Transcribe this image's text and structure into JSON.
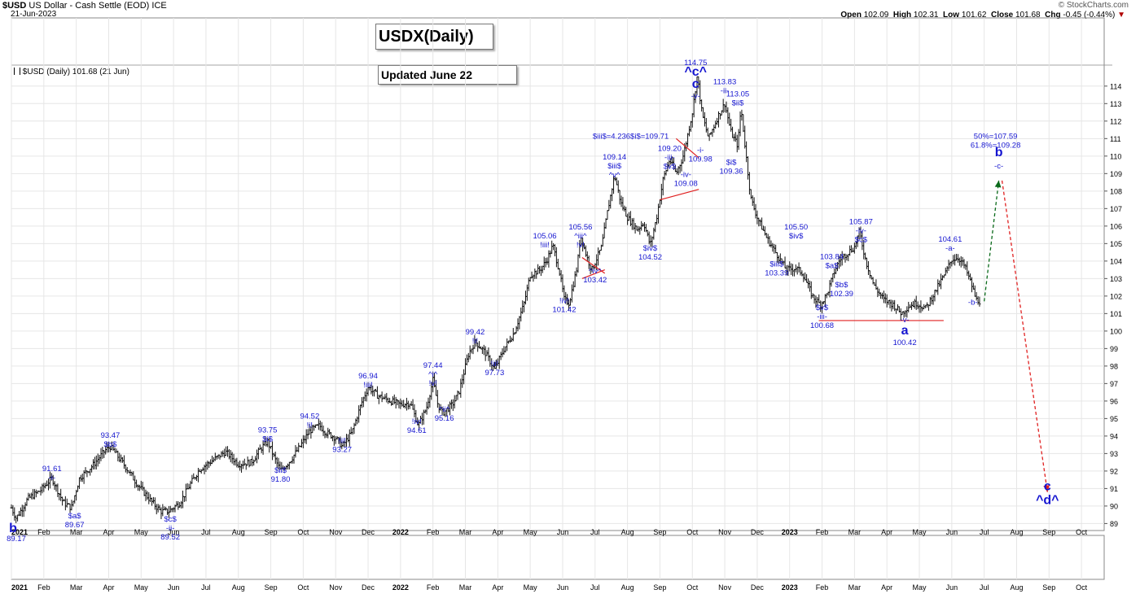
{
  "header": {
    "symbol": "$USD",
    "name": "US Dollar - Cash Settle (EOD)",
    "exchange": "ICE",
    "date": "21-Jun-2023",
    "open_label": "Open",
    "open": "102.09",
    "high_label": "High",
    "high": "102.31",
    "low_label": "Low",
    "low": "101.62",
    "close_label": "Close",
    "close": "101.68",
    "chg_label": "Chg",
    "chg": "-0.45 (-0.44%)",
    "chg_arrow": "▼",
    "brand": "© StockCharts.com",
    "legend": "$USD (Daily) 101.68 (21 Jun)"
  },
  "title_box": "USDX(Daily)",
  "updated_box": "Updated June 22",
  "colors": {
    "wave": "#1515d0",
    "price": "#111111",
    "trend": "#e02020",
    "projection_up": "#0a6a1a",
    "projection_down": "#e02020",
    "grid": "#e6e6e6"
  },
  "chart_data": {
    "type": "line",
    "title": "USDX(Daily)",
    "xlabel": "",
    "ylabel": "",
    "ylim": [
      88.6,
      115.2
    ],
    "y_ticks": [
      89,
      90,
      91,
      92,
      93,
      94,
      95,
      96,
      97,
      98,
      99,
      100,
      101,
      102,
      103,
      104,
      105,
      106,
      107,
      108,
      109,
      110,
      111,
      112,
      113,
      114
    ],
    "x_range_months": [
      0,
      33.7
    ],
    "x_ticks": [
      {
        "m": 0,
        "label": "2021",
        "bold": true
      },
      {
        "m": 1,
        "label": "Feb"
      },
      {
        "m": 2,
        "label": "Mar"
      },
      {
        "m": 3,
        "label": "Apr"
      },
      {
        "m": 4,
        "label": "May"
      },
      {
        "m": 5,
        "label": "Jun"
      },
      {
        "m": 6,
        "label": "Jul"
      },
      {
        "m": 7,
        "label": "Aug"
      },
      {
        "m": 8,
        "label": "Sep"
      },
      {
        "m": 9,
        "label": "Oct"
      },
      {
        "m": 10,
        "label": "Nov"
      },
      {
        "m": 11,
        "label": "Dec"
      },
      {
        "m": 12,
        "label": "2022",
        "bold": true
      },
      {
        "m": 13,
        "label": "Feb"
      },
      {
        "m": 14,
        "label": "Mar"
      },
      {
        "m": 15,
        "label": "Apr"
      },
      {
        "m": 16,
        "label": "May"
      },
      {
        "m": 17,
        "label": "Jun"
      },
      {
        "m": 18,
        "label": "Jul"
      },
      {
        "m": 19,
        "label": "Aug"
      },
      {
        "m": 20,
        "label": "Sep"
      },
      {
        "m": 21,
        "label": "Oct"
      },
      {
        "m": 22,
        "label": "Nov"
      },
      {
        "m": 23,
        "label": "Dec"
      },
      {
        "m": 24,
        "label": "2023",
        "bold": true
      },
      {
        "m": 25,
        "label": "Feb"
      },
      {
        "m": 26,
        "label": "Mar"
      },
      {
        "m": 27,
        "label": "Apr"
      },
      {
        "m": 28,
        "label": "May"
      },
      {
        "m": 29,
        "label": "Jun"
      },
      {
        "m": 30,
        "label": "Jul"
      },
      {
        "m": 31,
        "label": "Aug"
      },
      {
        "m": 32,
        "label": "Sep"
      },
      {
        "m": 33,
        "label": "Oct"
      }
    ],
    "series": [
      {
        "name": "$USD (Daily) close",
        "points": [
          [
            0,
            89.9
          ],
          [
            0.15,
            89.3
          ],
          [
            0.5,
            90.4
          ],
          [
            0.9,
            90.9
          ],
          [
            1.25,
            91.6
          ],
          [
            1.6,
            90.2
          ],
          [
            1.85,
            89.9
          ],
          [
            2.1,
            91.6
          ],
          [
            2.5,
            92.3
          ],
          [
            2.9,
            93.2
          ],
          [
            3.05,
            93.4
          ],
          [
            3.5,
            92.3
          ],
          [
            3.9,
            91.2
          ],
          [
            4.3,
            90.3
          ],
          [
            4.6,
            89.7
          ],
          [
            4.85,
            89.7
          ],
          [
            5.2,
            90.2
          ],
          [
            5.5,
            91.2
          ],
          [
            5.8,
            92.1
          ],
          [
            6.2,
            92.6
          ],
          [
            6.6,
            93.1
          ],
          [
            7.0,
            92.4
          ],
          [
            7.4,
            92.5
          ],
          [
            7.7,
            93.3
          ],
          [
            7.9,
            93.7
          ],
          [
            8.1,
            92.8
          ],
          [
            8.3,
            92.0
          ],
          [
            8.6,
            92.6
          ],
          [
            8.9,
            93.4
          ],
          [
            9.2,
            94.3
          ],
          [
            9.5,
            94.6
          ],
          [
            9.7,
            94.2
          ],
          [
            10.0,
            93.9
          ],
          [
            10.2,
            93.4
          ],
          [
            10.5,
            94.2
          ],
          [
            10.8,
            95.9
          ],
          [
            11.0,
            96.8
          ],
          [
            11.3,
            96.3
          ],
          [
            11.7,
            96.0
          ],
          [
            12.0,
            95.8
          ],
          [
            12.3,
            95.9
          ],
          [
            12.55,
            94.6
          ],
          [
            12.8,
            95.6
          ],
          [
            13.0,
            97.2
          ],
          [
            13.15,
            95.8
          ],
          [
            13.3,
            95.3
          ],
          [
            13.6,
            95.8
          ],
          [
            13.8,
            96.5
          ],
          [
            14.1,
            98.7
          ],
          [
            14.3,
            99.4
          ],
          [
            14.6,
            98.8
          ],
          [
            14.9,
            97.8
          ],
          [
            15.2,
            99.0
          ],
          [
            15.5,
            99.9
          ],
          [
            15.8,
            101.5
          ],
          [
            16.0,
            103.2
          ],
          [
            16.3,
            103.5
          ],
          [
            16.5,
            104.0
          ],
          [
            16.7,
            104.9
          ],
          [
            16.9,
            103.4
          ],
          [
            17.05,
            101.8
          ],
          [
            17.2,
            101.6
          ],
          [
            17.45,
            103.7
          ],
          [
            17.55,
            105.5
          ],
          [
            17.75,
            104.2
          ],
          [
            17.9,
            103.5
          ],
          [
            18.2,
            104.8
          ],
          [
            18.4,
            107.0
          ],
          [
            18.6,
            108.9
          ],
          [
            18.8,
            107.3
          ],
          [
            19.0,
            106.5
          ],
          [
            19.3,
            105.8
          ],
          [
            19.5,
            106.2
          ],
          [
            19.7,
            104.9
          ],
          [
            19.9,
            106.5
          ],
          [
            20.1,
            108.7
          ],
          [
            20.3,
            109.8
          ],
          [
            20.5,
            109.0
          ],
          [
            20.7,
            109.9
          ],
          [
            20.8,
            110.7
          ],
          [
            21.0,
            112.5
          ],
          [
            21.15,
            114.6
          ],
          [
            21.3,
            112.4
          ],
          [
            21.5,
            111.0
          ],
          [
            21.8,
            112.3
          ],
          [
            22.0,
            113.0
          ],
          [
            22.2,
            111.3
          ],
          [
            22.4,
            110.6
          ],
          [
            22.5,
            112.8
          ],
          [
            22.6,
            111.0
          ],
          [
            22.8,
            107.6
          ],
          [
            23.0,
            106.5
          ],
          [
            23.3,
            105.3
          ],
          [
            23.6,
            104.4
          ],
          [
            23.9,
            103.5
          ],
          [
            24.2,
            103.6
          ],
          [
            24.4,
            103.3
          ],
          [
            24.7,
            102.0
          ],
          [
            24.95,
            101.5
          ],
          [
            25.15,
            102.1
          ],
          [
            25.4,
            103.5
          ],
          [
            25.55,
            104.1
          ],
          [
            25.8,
            104.5
          ],
          [
            26.0,
            104.8
          ],
          [
            26.15,
            105.7
          ],
          [
            26.35,
            104.0
          ],
          [
            26.6,
            102.6
          ],
          [
            26.9,
            101.8
          ],
          [
            27.2,
            101.5
          ],
          [
            27.45,
            101.0
          ],
          [
            27.65,
            101.4
          ],
          [
            27.9,
            101.6
          ],
          [
            28.2,
            101.3
          ],
          [
            28.5,
            102.3
          ],
          [
            28.8,
            103.3
          ],
          [
            29.0,
            104.1
          ],
          [
            29.2,
            104.2
          ],
          [
            29.4,
            103.7
          ],
          [
            29.6,
            102.7
          ],
          [
            29.75,
            101.8
          ],
          [
            29.9,
            101.68
          ]
        ]
      }
    ],
    "projections": [
      {
        "name": "projected wave b",
        "from": [
          30.0,
          101.7
        ],
        "to": [
          30.45,
          108.6
        ],
        "style": "dashed",
        "color": "green"
      },
      {
        "name": "projected wave c",
        "from": [
          30.55,
          108.6
        ],
        "to": [
          31.95,
          90.8
        ],
        "style": "dashed",
        "color": "red"
      }
    ],
    "trendlines": [
      [
        [
          17.6,
          104.2
        ],
        [
          18.3,
          103.3
        ]
      ],
      [
        [
          17.6,
          103.0
        ],
        [
          18.3,
          103.5
        ]
      ],
      [
        [
          20.5,
          111.0
        ],
        [
          21.2,
          109.9
        ]
      ],
      [
        [
          20.0,
          107.5
        ],
        [
          21.2,
          108.1
        ]
      ],
      [
        [
          24.9,
          100.6
        ],
        [
          28.75,
          100.6
        ]
      ]
    ],
    "annotations": [
      {
        "m": 0.05,
        "v": 88.5,
        "lines": [
          "b"
        ],
        "big": true
      },
      {
        "m": 0.15,
        "v": 88.0,
        "lines": [
          "89.17"
        ]
      },
      {
        "m": 1.25,
        "v": 92.0,
        "lines": [
          "91.61",
          "-i-"
        ]
      },
      {
        "m": 1.95,
        "v": 89.3,
        "lines": [
          "$a$",
          "89.67"
        ]
      },
      {
        "m": 3.05,
        "v": 93.9,
        "lines": [
          "93.47",
          "$b$"
        ]
      },
      {
        "m": 4.9,
        "v": 89.1,
        "lines": [
          "$c$",
          "-ii-",
          "89.52"
        ]
      },
      {
        "m": 7.9,
        "v": 94.2,
        "lines": [
          "93.75",
          "$i$"
        ]
      },
      {
        "m": 8.3,
        "v": 91.9,
        "lines": [
          "$ii$",
          "91.80"
        ]
      },
      {
        "m": 9.2,
        "v": 95.0,
        "lines": [
          "94.52",
          "!i!"
        ]
      },
      {
        "m": 10.2,
        "v": 93.6,
        "lines": [
          "!ii!",
          "93.27"
        ]
      },
      {
        "m": 11.0,
        "v": 97.3,
        "lines": [
          "96.94",
          "!iii!"
        ]
      },
      {
        "m": 12.5,
        "v": 94.7,
        "lines": [
          "!iv!",
          "94.61"
        ]
      },
      {
        "m": 13.0,
        "v": 97.9,
        "lines": [
          "97.44",
          "^i^",
          "!v!"
        ]
      },
      {
        "m": 13.35,
        "v": 95.4,
        "lines": [
          "^ii^",
          "95.16"
        ]
      },
      {
        "m": 14.3,
        "v": 99.8,
        "lines": [
          "99.42",
          "!i!"
        ]
      },
      {
        "m": 14.9,
        "v": 98.0,
        "lines": [
          "!ii!",
          "97.73"
        ]
      },
      {
        "m": 16.45,
        "v": 105.3,
        "lines": [
          "105.06",
          "!iii!"
        ]
      },
      {
        "m": 17.05,
        "v": 101.6,
        "lines": [
          "!iv!",
          "101.42"
        ]
      },
      {
        "m": 17.55,
        "v": 105.8,
        "lines": [
          "105.56",
          "^iii^",
          "!v!"
        ]
      },
      {
        "m": 18.0,
        "v": 103.3,
        "lines": [
          "^iv^",
          "103.42"
        ]
      },
      {
        "m": 19.1,
        "v": 111.0,
        "lines": [
          "$iii$=4.236$i$=109.71"
        ]
      },
      {
        "m": 18.6,
        "v": 109.8,
        "lines": [
          "109.14",
          "$iii$",
          "^v^"
        ]
      },
      {
        "m": 19.7,
        "v": 104.6,
        "lines": [
          "$iv$",
          "104.52"
        ]
      },
      {
        "m": 20.3,
        "v": 110.3,
        "lines": [
          "109.20",
          "-iii-",
          "$v$"
        ]
      },
      {
        "m": 20.8,
        "v": 108.8,
        "lines": [
          "-iv-",
          "109.08"
        ]
      },
      {
        "m": 21.1,
        "v": 115.2,
        "lines": [
          "114.75"
        ]
      },
      {
        "m": 21.1,
        "v": 114.6,
        "lines": [
          "^c^",
          "c"
        ],
        "big": true
      },
      {
        "m": 21.1,
        "v": 113.3,
        "lines": [
          "-v-"
        ]
      },
      {
        "m": 21.25,
        "v": 110.2,
        "lines": [
          "-i-",
          "109.98"
        ]
      },
      {
        "m": 22.0,
        "v": 114.1,
        "lines": [
          "113.83",
          "-ii-"
        ]
      },
      {
        "m": 22.4,
        "v": 113.4,
        "lines": [
          "113.05",
          "$ii$"
        ]
      },
      {
        "m": 22.2,
        "v": 109.5,
        "lines": [
          "$i$",
          "109.36"
        ]
      },
      {
        "m": 24.2,
        "v": 105.8,
        "lines": [
          "105.50",
          "$iv$"
        ]
      },
      {
        "m": 23.6,
        "v": 103.7,
        "lines": [
          "$iii$",
          "103.39"
        ]
      },
      {
        "m": 25.3,
        "v": 104.1,
        "lines": [
          "103.84",
          "$a$"
        ]
      },
      {
        "m": 25.6,
        "v": 102.5,
        "lines": [
          "$b$",
          "102.39"
        ]
      },
      {
        "m": 25.0,
        "v": 101.2,
        "lines": [
          "$v$",
          "-iii-",
          "100.68"
        ]
      },
      {
        "m": 26.2,
        "v": 106.1,
        "lines": [
          "105.87",
          "-iv-",
          "$c$"
        ]
      },
      {
        "m": 27.55,
        "v": 100.5,
        "lines": [
          "-v-"
        ]
      },
      {
        "m": 27.55,
        "v": 99.8,
        "lines": [
          "a"
        ],
        "big": true
      },
      {
        "m": 27.55,
        "v": 99.2,
        "lines": [
          "100.42"
        ]
      },
      {
        "m": 28.95,
        "v": 105.1,
        "lines": [
          "104.61",
          "-a-"
        ]
      },
      {
        "m": 29.65,
        "v": 101.5,
        "lines": [
          "-b-"
        ]
      },
      {
        "m": 30.35,
        "v": 111.0,
        "lines": [
          "50%=107.59",
          "61.8%=109.28"
        ]
      },
      {
        "m": 30.45,
        "v": 110.0,
        "lines": [
          "b"
        ],
        "big": true
      },
      {
        "m": 30.45,
        "v": 109.3,
        "lines": [
          "-c-"
        ]
      },
      {
        "m": 31.95,
        "v": 90.9,
        "lines": [
          "c"
        ],
        "big": true
      },
      {
        "m": 31.95,
        "v": 90.1,
        "lines": [
          "^d^"
        ],
        "big": true
      }
    ]
  }
}
